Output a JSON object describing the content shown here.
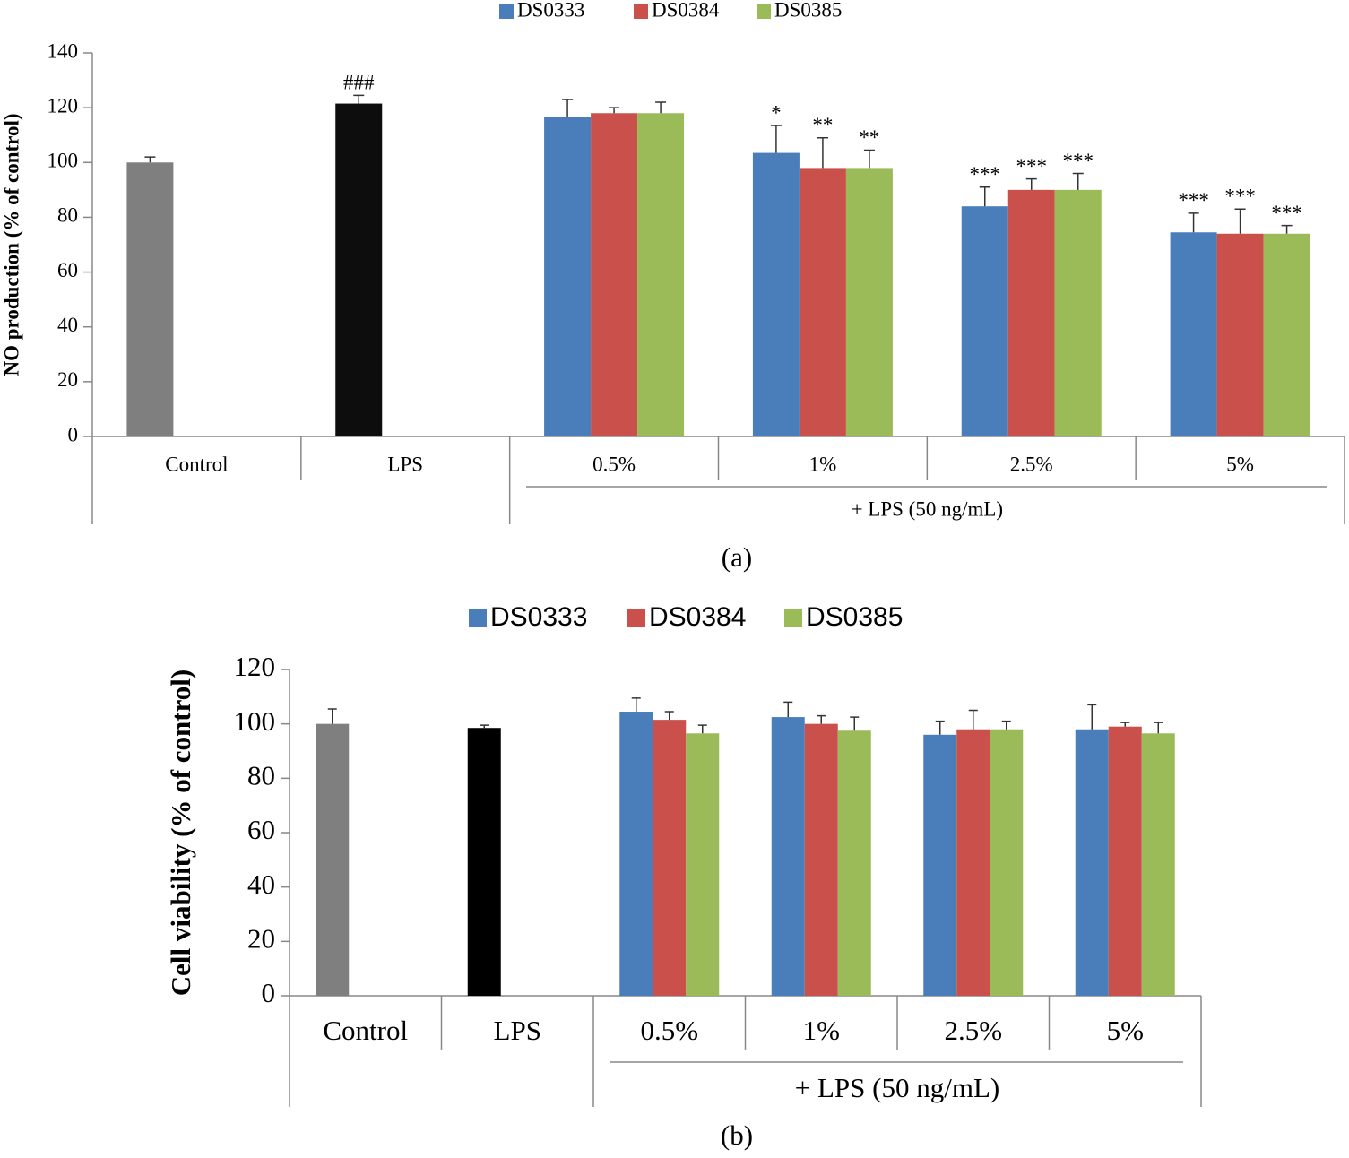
{
  "chart_data": [
    {
      "type": "bar",
      "y_label": "NO production (% of control)",
      "caption": "(a)",
      "categories": [
        "Control",
        "LPS",
        "0.5%",
        "1%",
        "2.5%",
        "5%"
      ],
      "group_label": "+ LPS (50 ng/mL)",
      "ylim": [
        0,
        140
      ],
      "yticks": [
        0,
        20,
        40,
        60,
        80,
        100,
        120,
        140
      ],
      "baseline": {
        "colors": [
          "#7f7f7f",
          "#0d0d0d"
        ],
        "values": [
          100,
          121.5,
          null,
          null,
          null,
          null
        ],
        "errors": [
          2,
          3,
          null,
          null,
          null,
          null
        ],
        "annotations": [
          null,
          "###",
          null,
          null,
          null,
          null
        ]
      },
      "series": [
        {
          "name": "DS0333",
          "color": "#4a7ebb",
          "values": [
            null,
            null,
            116.5,
            103.5,
            84,
            74.5
          ],
          "errors": [
            null,
            null,
            6.5,
            10,
            7,
            7
          ],
          "annotations": [
            null,
            null,
            null,
            "*",
            "***",
            "***"
          ]
        },
        {
          "name": "DS0384",
          "color": "#c9504b",
          "values": [
            null,
            null,
            118,
            98,
            90,
            74
          ],
          "errors": [
            null,
            null,
            2,
            11,
            4,
            9
          ],
          "annotations": [
            null,
            null,
            null,
            "**",
            "***",
            "***"
          ]
        },
        {
          "name": "DS0385",
          "color": "#9bbb59",
          "values": [
            null,
            null,
            118,
            98,
            90,
            74
          ],
          "errors": [
            null,
            null,
            4,
            6.5,
            6,
            3
          ],
          "annotations": [
            null,
            null,
            null,
            "**",
            "***",
            "***"
          ]
        }
      ]
    },
    {
      "type": "bar",
      "y_label": "Cell viability (% of control)",
      "caption": "(b)",
      "categories": [
        "Control",
        "LPS",
        "0.5%",
        "1%",
        "2.5%",
        "5%"
      ],
      "group_label": "+ LPS (50 ng/mL)",
      "ylim": [
        0,
        120
      ],
      "yticks": [
        0,
        20,
        40,
        60,
        80,
        100,
        120
      ],
      "baseline": {
        "colors": [
          "#7f7f7f",
          "#000000"
        ],
        "values": [
          100,
          98.5,
          null,
          null,
          null,
          null
        ],
        "errors": [
          5.5,
          1,
          null,
          null,
          null,
          null
        ],
        "annotations": [
          null,
          null,
          null,
          null,
          null,
          null
        ]
      },
      "series": [
        {
          "name": "DS0333",
          "color": "#4a7ebb",
          "values": [
            null,
            null,
            104.5,
            102.5,
            96,
            98
          ],
          "errors": [
            null,
            null,
            5,
            5.5,
            5,
            9
          ],
          "annotations": [
            null,
            null,
            null,
            null,
            null,
            null
          ]
        },
        {
          "name": "DS0384",
          "color": "#c9504b",
          "values": [
            null,
            null,
            101.5,
            100,
            98,
            99
          ],
          "errors": [
            null,
            null,
            3,
            3,
            7,
            1.5
          ],
          "annotations": [
            null,
            null,
            null,
            null,
            null,
            null
          ]
        },
        {
          "name": "DS0385",
          "color": "#9bbb59",
          "values": [
            null,
            null,
            96.5,
            97.5,
            98,
            96.5
          ],
          "errors": [
            null,
            null,
            3,
            5,
            3,
            4
          ],
          "annotations": [
            null,
            null,
            null,
            null,
            null,
            null
          ]
        }
      ]
    }
  ]
}
